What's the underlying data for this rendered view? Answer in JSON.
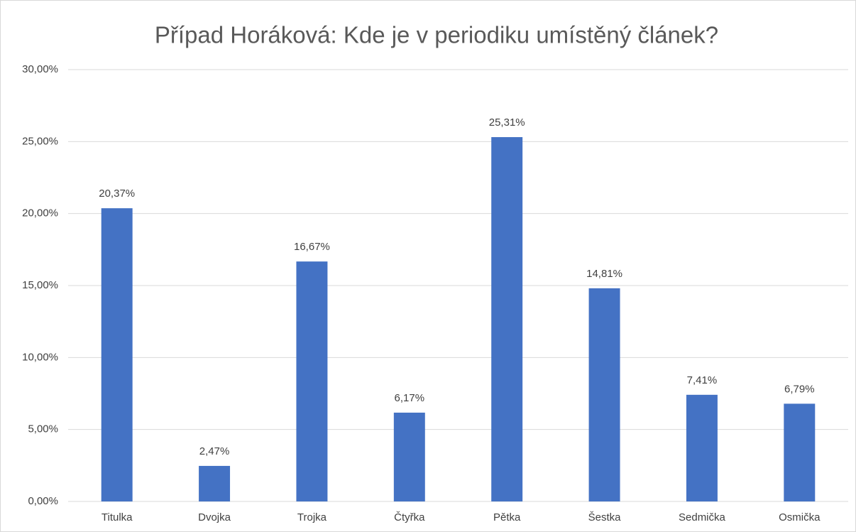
{
  "chart_data": {
    "type": "bar",
    "title": "Případ Horáková: Kde je v periodiku umístěný článek?",
    "categories": [
      "Titulka",
      "Dvojka",
      "Trojka",
      "Čtyřka",
      "Pětka",
      "Šestka",
      "Sedmička",
      "Osmička"
    ],
    "values": [
      20.37,
      2.47,
      16.67,
      6.17,
      25.31,
      14.81,
      7.41,
      6.79
    ],
    "value_labels": [
      "20,37%",
      "2,47%",
      "16,67%",
      "6,17%",
      "25,31%",
      "14,81%",
      "7,41%",
      "6,79%"
    ],
    "color": "#4472c4",
    "ylim": [
      0,
      30
    ],
    "yticks": [
      {
        "value": 0,
        "label": "0,00%"
      },
      {
        "value": 5,
        "label": "5,00%"
      },
      {
        "value": 10,
        "label": "10,00%"
      },
      {
        "value": 15,
        "label": "15,00%"
      },
      {
        "value": 20,
        "label": "20,00%"
      },
      {
        "value": 25,
        "label": "25,00%"
      },
      {
        "value": 30,
        "label": "30,00%"
      }
    ],
    "grid": true
  }
}
